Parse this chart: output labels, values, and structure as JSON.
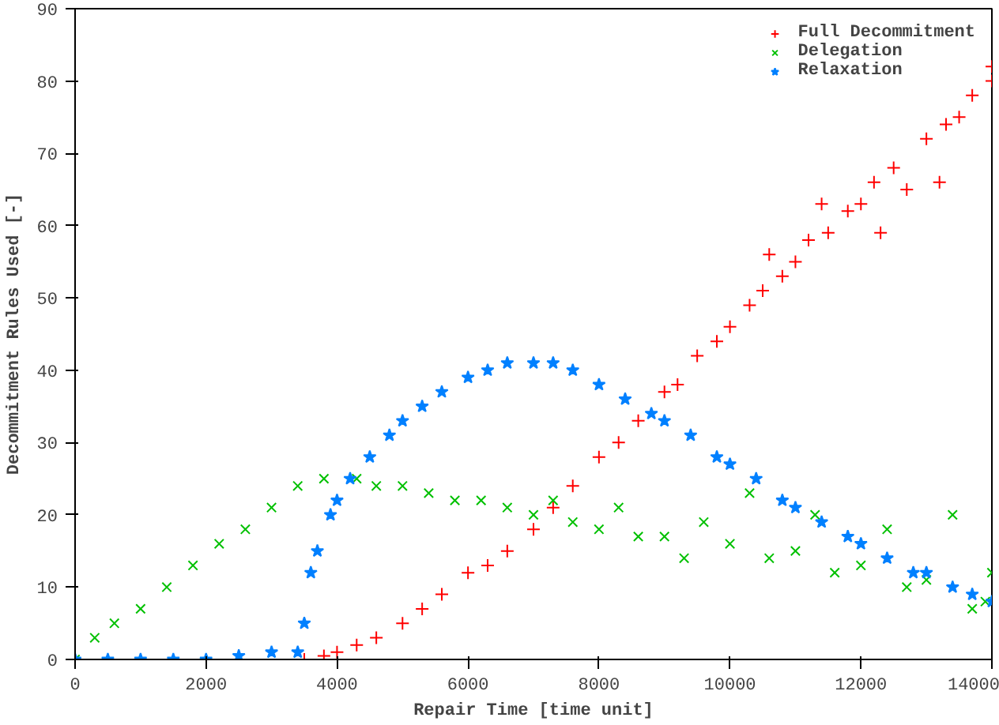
{
  "chart_data": {
    "type": "scatter",
    "xlabel": "Repair Time [time unit]",
    "ylabel": "Decommitment Rules Used [-]",
    "xlim": [
      0,
      14000
    ],
    "ylim": [
      0,
      90
    ],
    "xticks": [
      0,
      2000,
      4000,
      6000,
      8000,
      10000,
      12000,
      14000
    ],
    "yticks": [
      0,
      10,
      20,
      30,
      40,
      50,
      60,
      70,
      80,
      90
    ],
    "grid": false,
    "legend": "top right",
    "series": [
      {
        "name": "Full Decommitment",
        "color": "#ff0000",
        "marker": "cross",
        "x": [
          3500,
          3800,
          4000,
          4300,
          4600,
          5000,
          5300,
          5600,
          6000,
          6300,
          6600,
          7000,
          7300,
          7600,
          8000,
          8300,
          8600,
          9000,
          9200,
          9500,
          9800,
          10000,
          10300,
          10500,
          10800,
          11000,
          11200,
          11500,
          11800,
          12000,
          12200,
          12500,
          12700,
          13000,
          13300,
          13500,
          13700,
          14000,
          14000,
          13200,
          12300,
          11400,
          10600
        ],
        "values": [
          0,
          0.5,
          1,
          2,
          3,
          5,
          7,
          9,
          12,
          13,
          15,
          18,
          21,
          24,
          28,
          30,
          33,
          37,
          38,
          42,
          44,
          46,
          49,
          51,
          53,
          55,
          58,
          59,
          62,
          63,
          66,
          68,
          65,
          72,
          74,
          75,
          78,
          80,
          82,
          66,
          59,
          63,
          56
        ]
      },
      {
        "name": "Delegation",
        "color": "#00c000",
        "marker": "x",
        "x": [
          0,
          300,
          600,
          1000,
          1400,
          1800,
          2200,
          2600,
          3000,
          3400,
          3800,
          4300,
          4600,
          5000,
          5400,
          5800,
          6200,
          6600,
          7000,
          7300,
          7600,
          8000,
          8300,
          8600,
          9000,
          9300,
          9600,
          10000,
          10300,
          10600,
          11000,
          11300,
          11600,
          12000,
          12400,
          12700,
          13000,
          13400,
          13700,
          13900,
          14000
        ],
        "values": [
          0,
          3,
          5,
          7,
          10,
          13,
          16,
          18,
          21,
          24,
          25,
          25,
          24,
          24,
          23,
          22,
          22,
          21,
          20,
          22,
          19,
          18,
          21,
          17,
          17,
          14,
          19,
          16,
          23,
          14,
          15,
          20,
          12,
          13,
          18,
          10,
          11,
          20,
          7,
          8,
          12
        ]
      },
      {
        "name": "Relaxation",
        "color": "#0080ff",
        "marker": "star",
        "x": [
          0,
          500,
          1000,
          1500,
          2000,
          2500,
          3000,
          3400,
          3500,
          3600,
          3700,
          3900,
          4000,
          4200,
          4500,
          4800,
          5000,
          5300,
          5600,
          6000,
          6300,
          6600,
          7000,
          7300,
          7600,
          8000,
          8400,
          8800,
          9000,
          9400,
          9800,
          10000,
          10400,
          10800,
          11000,
          11400,
          11800,
          12000,
          12400,
          12800,
          13000,
          13400,
          13700,
          14000
        ],
        "values": [
          0,
          0,
          0,
          0,
          0,
          0.5,
          1,
          1,
          5,
          12,
          15,
          20,
          22,
          25,
          28,
          31,
          33,
          35,
          37,
          39,
          40,
          41,
          41,
          41,
          40,
          38,
          36,
          34,
          33,
          31,
          28,
          27,
          25,
          22,
          21,
          19,
          17,
          16,
          14,
          12,
          12,
          10,
          9,
          8
        ]
      }
    ]
  }
}
